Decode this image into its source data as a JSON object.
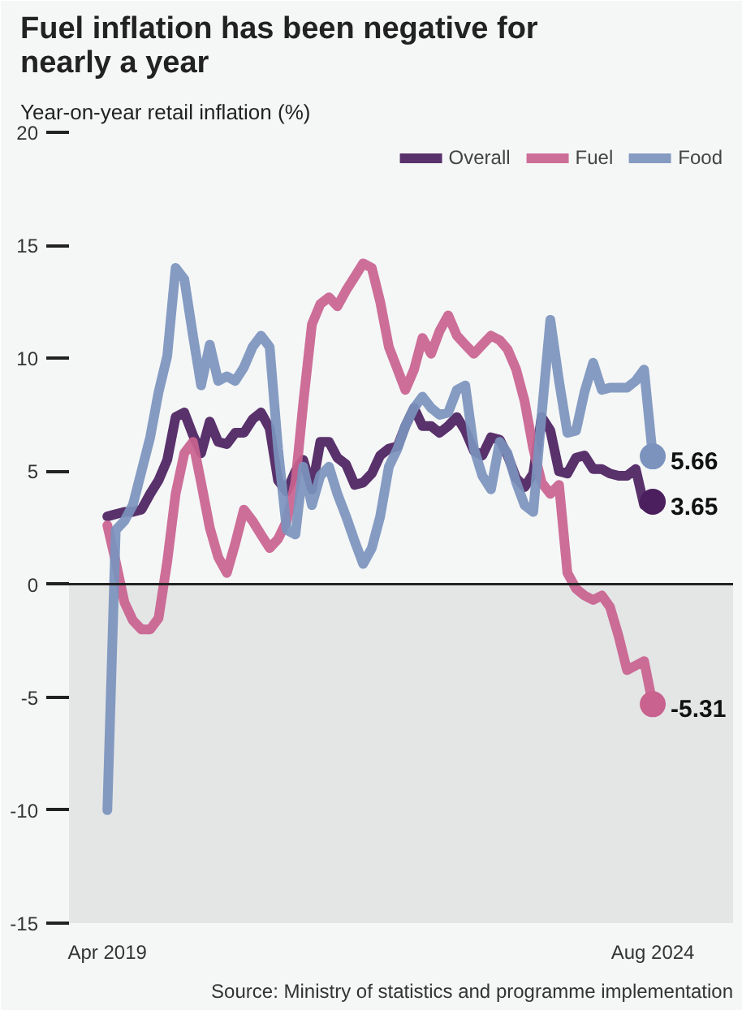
{
  "chart_data": {
    "type": "line",
    "title": "Fuel inflation has been negative for\nnearly a year",
    "ylabel": "Year-on-year retail inflation (%)",
    "x": [
      "2019-04",
      "2019-05",
      "2019-06",
      "2019-07",
      "2019-08",
      "2019-09",
      "2019-10",
      "2019-11",
      "2019-12",
      "2020-01",
      "2020-02",
      "2020-03",
      "2020-04",
      "2020-05",
      "2020-06",
      "2020-07",
      "2020-08",
      "2020-09",
      "2020-10",
      "2020-11",
      "2020-12",
      "2021-01",
      "2021-02",
      "2021-03",
      "2021-04",
      "2021-05",
      "2021-06",
      "2021-07",
      "2021-08",
      "2021-09",
      "2021-10",
      "2021-11",
      "2021-12",
      "2022-01",
      "2022-02",
      "2022-03",
      "2022-04",
      "2022-05",
      "2022-06",
      "2022-07",
      "2022-08",
      "2022-09",
      "2022-10",
      "2022-11",
      "2022-12",
      "2023-01",
      "2023-02",
      "2023-03",
      "2023-04",
      "2023-05",
      "2023-06",
      "2023-07",
      "2023-08",
      "2023-09",
      "2023-10",
      "2023-11",
      "2023-12",
      "2024-01",
      "2024-02",
      "2024-03",
      "2024-04",
      "2024-05",
      "2024-06",
      "2024-07",
      "2024-08"
    ],
    "series": [
      {
        "name": "Overall",
        "color": "#4b1f5e",
        "values": [
          3.0,
          3.1,
          3.2,
          3.2,
          3.3,
          4.0,
          4.6,
          5.5,
          7.4,
          7.6,
          6.6,
          5.8,
          7.2,
          6.3,
          6.2,
          6.7,
          6.7,
          7.3,
          7.6,
          6.9,
          4.6,
          4.1,
          5.0,
          5.5,
          4.2,
          6.3,
          6.3,
          5.6,
          5.3,
          4.4,
          4.5,
          4.9,
          5.7,
          6.0,
          6.1,
          7.0,
          7.8,
          7.0,
          7.0,
          6.7,
          7.0,
          7.4,
          6.8,
          5.9,
          5.7,
          6.5,
          6.4,
          5.7,
          4.7,
          4.3,
          4.9,
          7.4,
          6.8,
          5.0,
          4.9,
          5.6,
          5.7,
          5.1,
          5.1,
          4.9,
          4.8,
          4.8,
          5.1,
          3.5,
          3.65
        ]
      },
      {
        "name": "Fuel",
        "color": "#c9628f",
        "values": [
          2.6,
          1.0,
          -0.8,
          -1.6,
          -2.0,
          -2.0,
          -1.5,
          1.0,
          4.0,
          5.8,
          6.3,
          4.5,
          2.5,
          1.2,
          0.5,
          1.8,
          3.3,
          2.8,
          2.2,
          1.6,
          2.0,
          2.8,
          4.5,
          8.0,
          11.5,
          12.4,
          12.7,
          12.3,
          13.0,
          13.6,
          14.2,
          14.0,
          12.5,
          10.5,
          9.5,
          8.6,
          9.5,
          10.9,
          10.2,
          11.2,
          11.9,
          11.0,
          10.6,
          10.2,
          10.6,
          11.0,
          10.8,
          10.4,
          9.5,
          8.1,
          6.0,
          4.5,
          4.0,
          4.4,
          0.5,
          -0.2,
          -0.5,
          -0.7,
          -0.5,
          -1.0,
          -2.3,
          -3.8,
          -3.6,
          -3.4,
          -5.31
        ]
      },
      {
        "name": "Food",
        "color": "#7b93bd",
        "values": [
          -10,
          2.4,
          2.8,
          3.5,
          5.0,
          6.5,
          8.5,
          10.1,
          14.0,
          13.5,
          11.0,
          8.8,
          10.6,
          9.0,
          9.2,
          9.0,
          9.6,
          10.5,
          11.0,
          10.5,
          6.0,
          2.4,
          2.2,
          5.2,
          3.5,
          4.8,
          5.2,
          4.0,
          3.0,
          1.9,
          0.9,
          1.6,
          3.0,
          5.2,
          6.0,
          7.0,
          7.8,
          8.3,
          7.8,
          7.5,
          7.6,
          8.6,
          8.8,
          6.0,
          4.8,
          4.2,
          6.3,
          5.8,
          4.5,
          3.5,
          3.2,
          7.5,
          11.7,
          9.0,
          6.7,
          6.8,
          8.5,
          9.8,
          8.6,
          8.7,
          8.7,
          8.7,
          9.0,
          9.5,
          5.66
        ]
      }
    ],
    "xlim": [
      "2018-11-15",
      "2025-05-15"
    ],
    "xticks": [
      {
        "value": "2019-04",
        "label": "Apr 2019"
      },
      {
        "value": "2024-08",
        "label": "Aug 2024"
      }
    ],
    "ylim": [
      -15,
      20
    ],
    "yticks": [
      -15,
      -10,
      -5,
      0,
      5,
      10,
      15,
      20
    ],
    "bands": [
      {
        "axis": "y",
        "from": -15,
        "to": 0,
        "color": "#e4e6e6"
      }
    ],
    "ref_lines": [
      {
        "axis": "y",
        "value": 0,
        "color": "#222222"
      }
    ],
    "annotations": [
      {
        "text": "5.66",
        "x": "2024-08",
        "y": 5.66
      },
      {
        "text": "3.65",
        "x": "2024-08",
        "y": 3.65
      },
      {
        "text": "-5.31",
        "x": "2024-08",
        "y": -5.31
      },
      "Source: Ministry of statistics and programme implementation"
    ],
    "legend": "top right",
    "grid": false,
    "line_style": "solid"
  }
}
